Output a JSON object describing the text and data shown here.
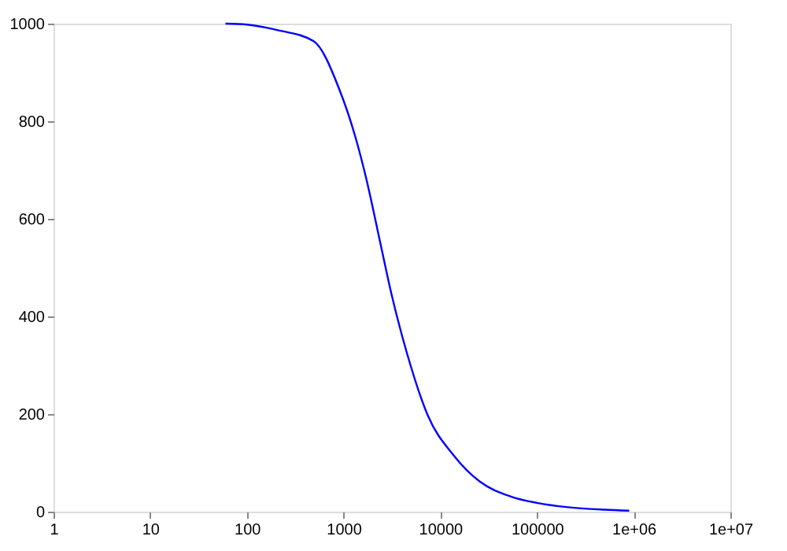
{
  "chart_data": {
    "type": "line",
    "log": "x",
    "grid": false,
    "x": [
      60,
      100,
      205,
      490,
      905,
      1310,
      1690,
      2450,
      3110,
      4550,
      7400,
      13800,
      25500,
      53600,
      100000,
      210000,
      500000,
      900000
    ],
    "series": [
      {
        "color": "#0000ff",
        "values": [
          1000,
          998,
          987,
          964,
          865,
          771,
          688,
          542,
          448,
          323,
          198,
          115,
          62,
          31,
          18,
          9,
          4,
          2
        ]
      }
    ],
    "xlim": [
      1,
      10000000
    ],
    "xticks": [
      1,
      10,
      100,
      1000,
      10000,
      100000,
      {
        "value": 1000000,
        "label": "1e+06"
      },
      {
        "value": 10000000,
        "label": "1e+07"
      }
    ],
    "ylim": [
      0,
      1000
    ],
    "yticks": [
      0,
      200,
      400,
      600,
      800,
      1000
    ]
  }
}
